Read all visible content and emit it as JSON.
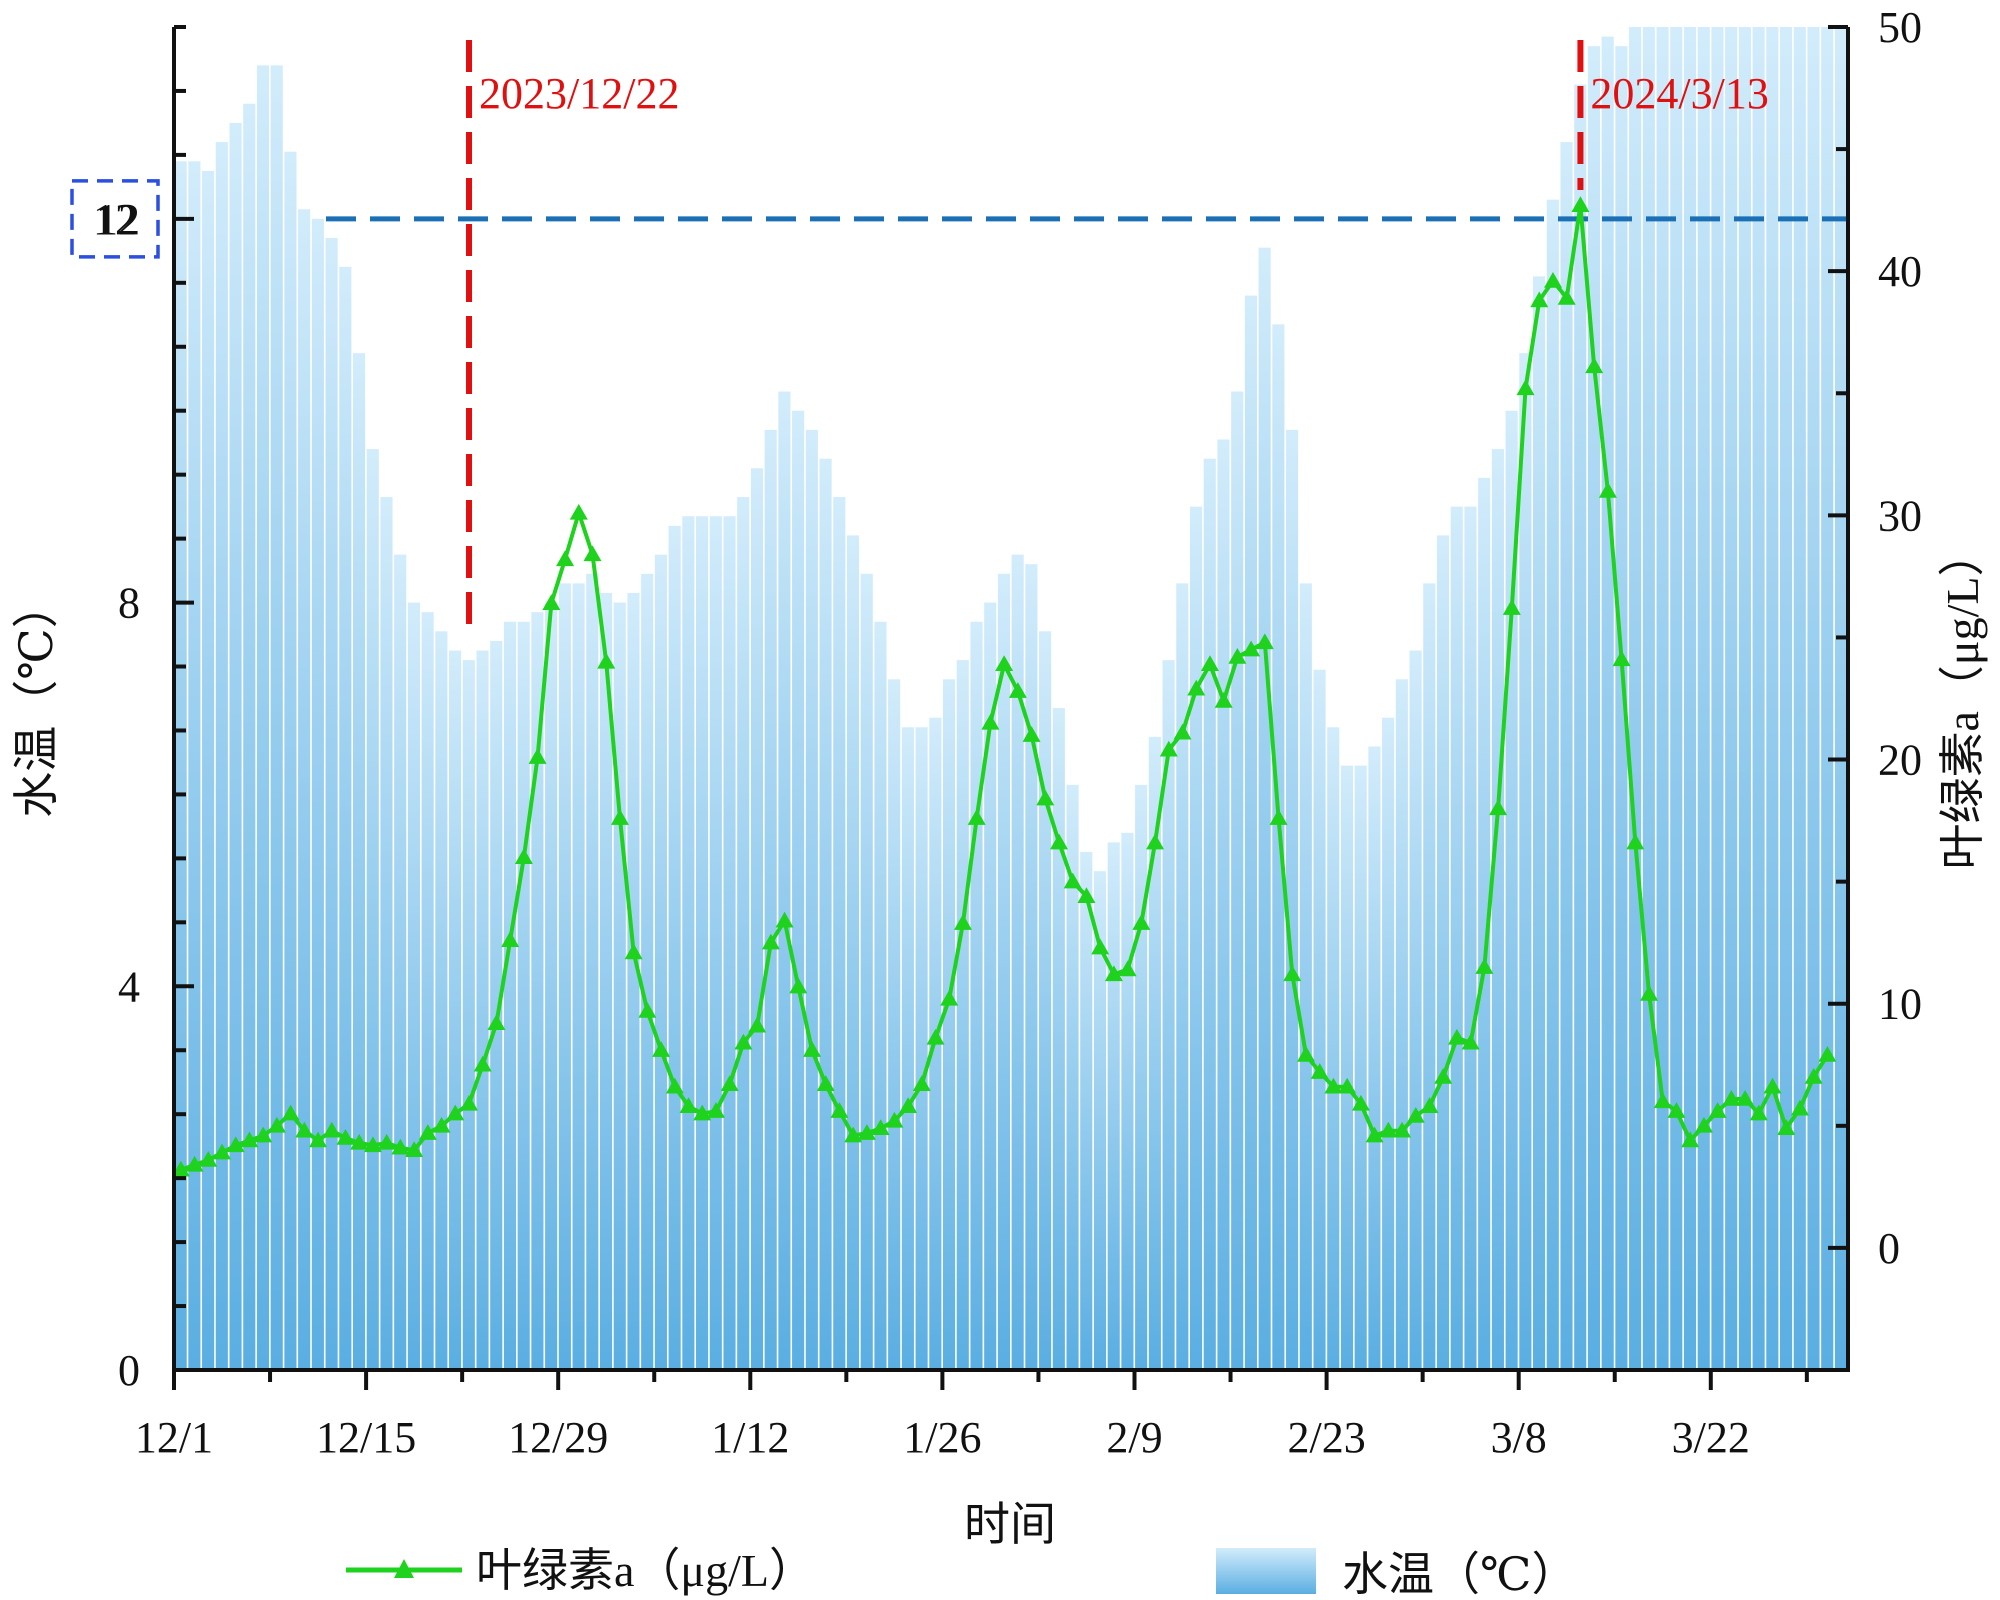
{
  "chart_data": {
    "type": "bar+line",
    "xlabel": "时间",
    "x_ticks": [
      "12/1",
      "12/15",
      "12/29",
      "1/12",
      "1/26",
      "2/9",
      "2/23",
      "3/8",
      "3/22"
    ],
    "left_axis": {
      "label": "水温（℃）",
      "ylim": [
        0,
        14
      ],
      "ticks": [
        "0",
        "4",
        "8",
        "12"
      ]
    },
    "right_axis": {
      "label": "叶绿素a（μg/L）",
      "ylim": [
        -5,
        50
      ],
      "ticks": [
        "0",
        "10",
        "20",
        "30",
        "40",
        "50"
      ]
    },
    "bar_series": {
      "name": "水温（℃）",
      "color_top": "#d2ecfb",
      "color_bottom": "#5aaee2",
      "values": [
        12.6,
        12.6,
        12.5,
        12.8,
        13.0,
        13.2,
        13.6,
        13.6,
        12.7,
        12.1,
        12.0,
        11.8,
        11.5,
        10.6,
        9.6,
        9.1,
        8.5,
        8.0,
        7.9,
        7.7,
        7.5,
        7.4,
        7.5,
        7.6,
        7.8,
        7.8,
        7.9,
        8.0,
        8.2,
        8.2,
        8.3,
        8.1,
        8.0,
        8.1,
        8.3,
        8.5,
        8.8,
        8.9,
        8.9,
        8.9,
        8.9,
        9.1,
        9.4,
        9.8,
        10.2,
        10.0,
        9.8,
        9.5,
        9.1,
        8.7,
        8.3,
        7.8,
        7.2,
        6.7,
        6.7,
        6.8,
        7.2,
        7.4,
        7.8,
        8.0,
        8.3,
        8.5,
        8.4,
        7.7,
        6.9,
        6.1,
        5.4,
        5.2,
        5.5,
        5.6,
        6.1,
        6.6,
        7.4,
        8.2,
        9.0,
        9.5,
        9.7,
        10.2,
        11.2,
        11.7,
        10.9,
        9.8,
        8.2,
        7.3,
        6.7,
        6.3,
        6.3,
        6.5,
        6.8,
        7.2,
        7.5,
        8.2,
        8.7,
        9.0,
        9.0,
        9.3,
        9.6,
        10.0,
        10.6,
        11.4,
        12.2,
        12.8,
        13.4,
        13.8,
        13.9,
        13.8,
        14.0,
        14.0,
        14.0,
        14.0,
        14.0,
        14.0,
        14.0,
        14.0,
        14.0,
        14.0,
        14.0,
        14.0,
        14.0,
        14.0,
        14.0,
        14.0
      ]
    },
    "line_series": {
      "name": "叶绿素a（μg/L）",
      "color": "#1ed21e",
      "marker": "triangle",
      "values": [
        3.2,
        3.4,
        3.6,
        3.9,
        4.2,
        4.4,
        4.6,
        5.0,
        5.5,
        4.8,
        4.4,
        4.8,
        4.5,
        4.3,
        4.2,
        4.3,
        4.1,
        4.0,
        4.7,
        5.0,
        5.5,
        5.9,
        7.5,
        9.2,
        12.6,
        16.0,
        20.1,
        26.4,
        28.2,
        30.1,
        28.4,
        24.0,
        17.6,
        12.1,
        9.7,
        8.1,
        6.6,
        5.8,
        5.5,
        5.6,
        6.7,
        8.4,
        9.1,
        12.5,
        13.4,
        10.7,
        8.1,
        6.7,
        5.6,
        4.6,
        4.7,
        4.9,
        5.2,
        5.8,
        6.7,
        8.6,
        10.2,
        13.3,
        17.6,
        21.5,
        23.9,
        22.8,
        21.0,
        18.4,
        16.6,
        15.0,
        14.4,
        12.3,
        11.2,
        11.4,
        13.3,
        16.6,
        20.4,
        21.1,
        22.9,
        23.9,
        22.4,
        24.2,
        24.5,
        24.8,
        17.6,
        11.2,
        7.9,
        7.2,
        6.6,
        6.6,
        5.9,
        4.6,
        4.8,
        4.8,
        5.4,
        5.8,
        7.0,
        8.6,
        8.4,
        11.5,
        18.0,
        26.2,
        35.2,
        38.8,
        39.6,
        38.9,
        42.7,
        36.1,
        31.0,
        24.1,
        16.6,
        10.4,
        6.0,
        5.6,
        4.4,
        5.0,
        5.6,
        6.1,
        6.1,
        5.5,
        6.6,
        4.9,
        5.7,
        7.0,
        7.9
      ]
    },
    "annotations": [
      {
        "text": "2023/12/22",
        "day_index": 21,
        "color": "#e01010"
      },
      {
        "text": "2024/3/13",
        "day_index": 102,
        "color": "#e01010"
      }
    ],
    "reference_line": {
      "value": 12,
      "axis": "left",
      "color": "#1a6fb5",
      "label": "12",
      "label_box_color": "#2b4fe0"
    },
    "legend": {
      "placement": "bottom",
      "entries": [
        {
          "label": "叶绿素a（μg/L）",
          "type": "line"
        },
        {
          "label": "水温（℃）",
          "type": "bar"
        }
      ]
    }
  }
}
